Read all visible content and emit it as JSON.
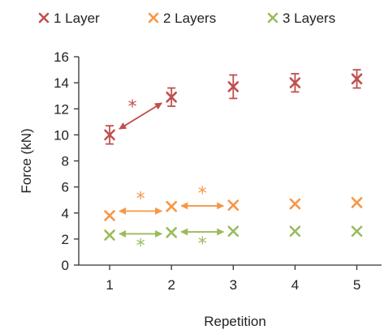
{
  "chart_data": {
    "type": "scatter",
    "title": "",
    "xlabel": "Repetition",
    "ylabel": "Force (kN)",
    "x": [
      1,
      2,
      3,
      4,
      5
    ],
    "xlim": [
      0.5,
      5.4
    ],
    "ylim": [
      0,
      16
    ],
    "yticks": [
      0,
      2,
      4,
      6,
      8,
      10,
      12,
      14,
      16
    ],
    "xticks": [
      1,
      2,
      3,
      4,
      5
    ],
    "grid": false,
    "legend_position": "top",
    "series": [
      {
        "name": "1 Layer",
        "color": "#c0504d",
        "values": [
          10.0,
          12.9,
          13.7,
          14.0,
          14.3
        ],
        "errors": [
          0.7,
          0.7,
          0.9,
          0.7,
          0.7
        ]
      },
      {
        "name": "2 Layers",
        "color": "#f79646",
        "values": [
          3.8,
          4.5,
          4.6,
          4.7,
          4.8
        ],
        "errors": [
          0,
          0,
          0,
          0,
          0
        ]
      },
      {
        "name": "3 Layers",
        "color": "#9bbb59",
        "values": [
          2.3,
          2.5,
          2.6,
          2.6,
          2.6
        ],
        "errors": [
          0,
          0,
          0,
          0,
          0
        ]
      }
    ],
    "annotations": [
      {
        "from": [
          1,
          10.0
        ],
        "to": [
          2,
          12.9
        ],
        "series": 0,
        "text": "*"
      },
      {
        "from": [
          1,
          3.8
        ],
        "to": [
          2,
          4.5
        ],
        "series": 1,
        "text": "*"
      },
      {
        "from": [
          2,
          4.5
        ],
        "to": [
          3,
          4.6
        ],
        "series": 1,
        "text": "*"
      },
      {
        "from": [
          1,
          2.3
        ],
        "to": [
          2,
          2.5
        ],
        "series": 2,
        "text": "*"
      },
      {
        "from": [
          2,
          2.5
        ],
        "to": [
          3,
          2.6
        ],
        "series": 2,
        "text": "*"
      }
    ]
  }
}
